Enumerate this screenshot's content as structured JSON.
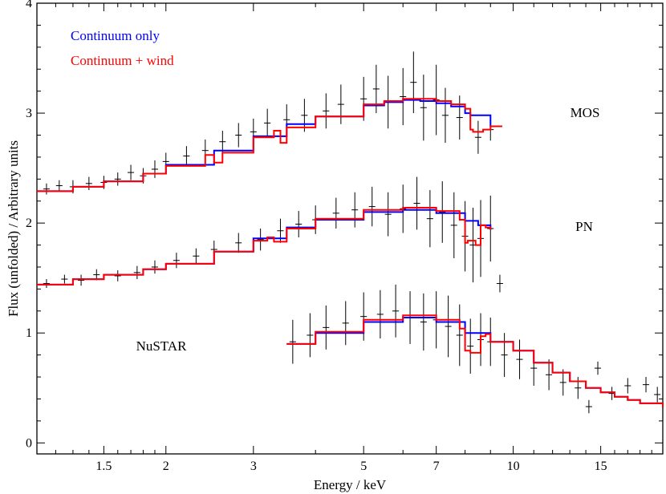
{
  "chart_data": {
    "type": "line",
    "xlabel": "Energy / keV",
    "ylabel": "Flux (unfolded) / Arbitrary units",
    "x_scale": "log",
    "xlim": [
      1.1,
      20
    ],
    "ylim": [
      -0.1,
      4.0
    ],
    "x_ticks": [
      {
        "value": 1.5,
        "label": "1.5"
      },
      {
        "value": 2,
        "label": "2"
      },
      {
        "value": 3,
        "label": "3"
      },
      {
        "value": 5,
        "label": "5"
      },
      {
        "value": 7,
        "label": "7"
      },
      {
        "value": 10,
        "label": "10"
      },
      {
        "value": 15,
        "label": "15"
      }
    ],
    "y_ticks": [
      {
        "value": 0,
        "label": "0"
      },
      {
        "value": 1,
        "label": "1"
      },
      {
        "value": 2,
        "label": "2"
      },
      {
        "value": 3,
        "label": "3"
      },
      {
        "value": 4,
        "label": "4"
      }
    ],
    "legend": {
      "placement": "top-left",
      "entries": [
        {
          "label": "Continuum only",
          "color": "#0000ff"
        },
        {
          "label": "Continuum + wind",
          "color": "#ff0000"
        }
      ]
    },
    "annotations": [
      "MOS",
      "PN",
      "NuSTAR"
    ],
    "series": [
      {
        "name": "Continuum only",
        "color": "#0000ff",
        "dataset": "MOS",
        "x": [
          1.1,
          1.3,
          1.5,
          1.8,
          2.0,
          2.5,
          3.0,
          3.5,
          4.0,
          5.0,
          5.5,
          6.0,
          6.5,
          7.0,
          7.5,
          8.0,
          8.2,
          8.7,
          9.0,
          9.5
        ],
        "y": [
          2.29,
          2.33,
          2.38,
          2.45,
          2.53,
          2.66,
          2.79,
          2.9,
          2.97,
          3.07,
          3.1,
          3.12,
          3.11,
          3.09,
          3.06,
          3.0,
          2.98,
          2.98,
          2.88,
          2.88
        ]
      },
      {
        "name": "Continuum + wind",
        "color": "#ff0000",
        "dataset": "MOS",
        "x": [
          1.1,
          1.3,
          1.5,
          1.8,
          2.0,
          2.4,
          2.5,
          2.6,
          3.0,
          3.3,
          3.4,
          3.5,
          4.0,
          5.0,
          5.5,
          6.0,
          6.5,
          7.0,
          7.5,
          8.0,
          8.2,
          8.3,
          8.7,
          9.0,
          9.5
        ],
        "y": [
          2.29,
          2.33,
          2.38,
          2.45,
          2.52,
          2.62,
          2.55,
          2.64,
          2.78,
          2.84,
          2.73,
          2.87,
          2.97,
          3.08,
          3.11,
          3.13,
          3.13,
          3.11,
          3.08,
          3.04,
          2.85,
          2.83,
          2.85,
          2.88,
          2.88
        ]
      },
      {
        "name": "Continuum only",
        "color": "#0000ff",
        "dataset": "PN",
        "x": [
          1.1,
          1.3,
          1.5,
          1.8,
          2.0,
          2.5,
          3.0,
          3.5,
          4.0,
          5.0,
          6.0,
          7.0,
          8.0,
          8.5,
          9.0
        ],
        "y": [
          1.44,
          1.49,
          1.53,
          1.58,
          1.63,
          1.74,
          1.86,
          1.96,
          2.03,
          2.1,
          2.12,
          2.09,
          2.02,
          1.98,
          1.94
        ]
      },
      {
        "name": "Continuum + wind",
        "color": "#ff0000",
        "dataset": "PN",
        "x": [
          1.1,
          1.3,
          1.5,
          1.8,
          2.0,
          2.5,
          3.0,
          3.2,
          3.3,
          3.5,
          4.0,
          5.0,
          6.0,
          7.0,
          7.8,
          8.0,
          8.1,
          8.4,
          8.6,
          8.8,
          9.0
        ],
        "y": [
          1.44,
          1.49,
          1.53,
          1.58,
          1.63,
          1.74,
          1.84,
          1.87,
          1.83,
          1.95,
          2.04,
          2.12,
          2.14,
          2.11,
          2.03,
          1.82,
          1.84,
          1.8,
          1.98,
          1.96,
          1.94
        ]
      },
      {
        "name": "Continuum only",
        "color": "#0000ff",
        "dataset": "NuSTAR",
        "x": [
          3.5,
          4.0,
          5.0,
          6.0,
          7.0,
          8.0,
          9.0,
          10.0,
          11.0,
          12.0,
          13.0,
          14.0,
          15.0,
          16.0,
          17.0,
          18.0,
          20.0
        ],
        "y": [
          0.9,
          1.0,
          1.1,
          1.14,
          1.1,
          1.0,
          0.92,
          0.84,
          0.73,
          0.64,
          0.56,
          0.5,
          0.46,
          0.42,
          0.39,
          0.36,
          0.32
        ]
      },
      {
        "name": "Continuum + wind",
        "color": "#ff0000",
        "dataset": "NuSTAR",
        "x": [
          3.5,
          4.0,
          5.0,
          6.0,
          7.0,
          7.8,
          8.0,
          8.2,
          8.6,
          8.8,
          9.0,
          10.0,
          11.0,
          12.0,
          13.0,
          14.0,
          15.0,
          16.0,
          17.0,
          18.0,
          20.0
        ],
        "y": [
          0.9,
          1.01,
          1.12,
          1.16,
          1.12,
          1.04,
          0.84,
          0.82,
          0.97,
          0.99,
          0.92,
          0.84,
          0.73,
          0.64,
          0.56,
          0.5,
          0.46,
          0.42,
          0.39,
          0.36,
          0.32
        ]
      }
    ],
    "data_points": [
      {
        "dataset": "MOS",
        "x": [
          1.15,
          1.22,
          1.3,
          1.4,
          1.5,
          1.6,
          1.7,
          1.8,
          1.9,
          2.0,
          2.2,
          2.4,
          2.6,
          2.8,
          3.0,
          3.2,
          3.5,
          3.8,
          4.2,
          4.5,
          5.0,
          5.3,
          5.6,
          6.0,
          6.3,
          6.6,
          7.0,
          7.3,
          7.8,
          8.5,
          9.0
        ],
        "y": [
          2.31,
          2.34,
          2.33,
          2.36,
          2.37,
          2.4,
          2.46,
          2.43,
          2.49,
          2.56,
          2.61,
          2.66,
          2.74,
          2.8,
          2.83,
          2.91,
          2.94,
          2.98,
          3.02,
          3.08,
          3.13,
          3.22,
          3.1,
          3.15,
          3.28,
          3.05,
          3.12,
          2.98,
          2.96,
          2.78,
          2.85
        ],
        "yerr": [
          0.05,
          0.05,
          0.06,
          0.06,
          0.06,
          0.06,
          0.07,
          0.07,
          0.08,
          0.08,
          0.09,
          0.1,
          0.1,
          0.11,
          0.12,
          0.13,
          0.14,
          0.15,
          0.16,
          0.18,
          0.2,
          0.22,
          0.24,
          0.26,
          0.28,
          0.3,
          0.32,
          0.25,
          0.2,
          0.15,
          0.1
        ]
      },
      {
        "dataset": "PN",
        "x": [
          1.15,
          1.25,
          1.35,
          1.45,
          1.6,
          1.75,
          1.9,
          2.1,
          2.3,
          2.5,
          2.8,
          3.1,
          3.4,
          3.7,
          4.0,
          4.4,
          4.8,
          5.2,
          5.6,
          6.0,
          6.4,
          6.8,
          7.2,
          7.6,
          8.0,
          8.3,
          8.6,
          9.0,
          9.4
        ],
        "y": [
          1.45,
          1.49,
          1.48,
          1.53,
          1.52,
          1.55,
          1.6,
          1.66,
          1.7,
          1.76,
          1.82,
          1.85,
          1.93,
          1.99,
          2.03,
          2.09,
          2.12,
          2.15,
          2.08,
          2.13,
          2.18,
          2.04,
          2.1,
          1.98,
          1.88,
          1.8,
          1.86,
          1.95,
          1.45
        ],
        "yerr": [
          0.04,
          0.04,
          0.05,
          0.05,
          0.05,
          0.06,
          0.06,
          0.07,
          0.07,
          0.08,
          0.09,
          0.1,
          0.11,
          0.12,
          0.13,
          0.14,
          0.16,
          0.18,
          0.2,
          0.22,
          0.24,
          0.26,
          0.28,
          0.3,
          0.32,
          0.34,
          0.35,
          0.3,
          0.08
        ]
      },
      {
        "dataset": "NuSTAR",
        "x": [
          3.6,
          3.9,
          4.2,
          4.6,
          5.0,
          5.4,
          5.8,
          6.2,
          6.6,
          7.0,
          7.4,
          7.8,
          8.2,
          8.6,
          9.0,
          9.6,
          10.3,
          11.0,
          11.8,
          12.6,
          13.5,
          14.2,
          14.8,
          15.8,
          17.0,
          18.5,
          19.5
        ],
        "y": [
          0.92,
          0.98,
          1.05,
          1.09,
          1.15,
          1.17,
          1.2,
          1.14,
          1.1,
          1.12,
          1.06,
          0.98,
          0.88,
          0.94,
          0.92,
          0.8,
          0.76,
          0.68,
          0.62,
          0.55,
          0.5,
          0.33,
          0.68,
          0.45,
          0.52,
          0.53,
          0.44
        ],
        "yerr": [
          0.2,
          0.2,
          0.2,
          0.2,
          0.22,
          0.22,
          0.24,
          0.24,
          0.26,
          0.26,
          0.28,
          0.28,
          0.25,
          0.24,
          0.22,
          0.2,
          0.18,
          0.16,
          0.14,
          0.12,
          0.1,
          0.06,
          0.06,
          0.06,
          0.07,
          0.07,
          0.07
        ]
      }
    ],
    "grid": false
  }
}
